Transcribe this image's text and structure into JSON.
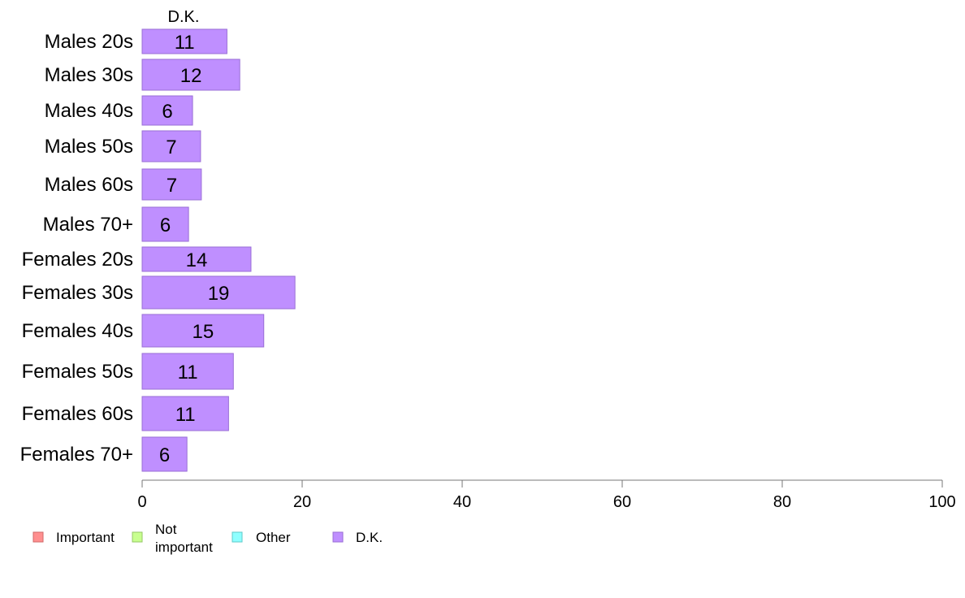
{
  "chart_data": {
    "type": "bar",
    "orientation": "horizontal",
    "column_header": "D.K.",
    "categories": [
      "Males 20s",
      "Males 30s",
      "Males 40s",
      "Males 50s",
      "Males 60s",
      "Males 70+",
      "Females 20s",
      "Females 30s",
      "Females 40s",
      "Females 50s",
      "Females 60s",
      "Females 70+"
    ],
    "series": [
      {
        "name": "D.K.",
        "values": [
          10.6,
          12.2,
          6.3,
          7.3,
          7.4,
          5.8,
          13.6,
          19.1,
          15.2,
          11.4,
          10.8,
          5.6
        ],
        "labels": [
          "11",
          "12",
          "6",
          "7",
          "7",
          "6",
          "14",
          "19",
          "15",
          "11",
          "11",
          "6"
        ],
        "color": "#bf8fff",
        "edge": "#9a6fd6"
      }
    ],
    "xlim": [
      0,
      100
    ],
    "xticks": [
      "0",
      "20",
      "40",
      "60",
      "80",
      "100"
    ],
    "legend": {
      "placement": "bottom-left",
      "items": [
        {
          "label": [
            "Important"
          ],
          "color": "#ff8f8f",
          "edge": "#d06a6a"
        },
        {
          "label": [
            "Not",
            "important"
          ],
          "color": "#c8ff8f",
          "edge": "#95c766"
        },
        {
          "label": [
            "Other"
          ],
          "color": "#8fffff",
          "edge": "#5fcaca"
        },
        {
          "label": [
            "D.K."
          ],
          "color": "#bf8fff",
          "edge": "#9a6fd6"
        }
      ]
    },
    "grid": false
  }
}
